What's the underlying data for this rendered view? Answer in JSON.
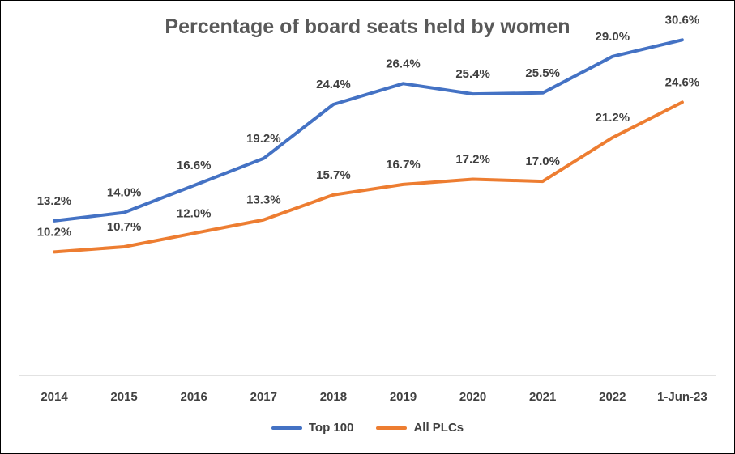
{
  "chart_data": {
    "type": "line",
    "title": "Percentage of board seats held by women",
    "categories": [
      "2014",
      "2015",
      "2016",
      "2017",
      "2018",
      "2019",
      "2020",
      "2021",
      "2022",
      "1-Jun-23"
    ],
    "ylim": [
      0,
      30
    ],
    "grid": false,
    "legend_position": "bottom",
    "series": [
      {
        "name": "Top 100",
        "color": "#4472C4",
        "values": [
          13.2,
          14.0,
          16.6,
          19.2,
          24.4,
          26.4,
          25.4,
          25.5,
          29.0,
          30.6
        ],
        "labels": [
          "13.2%",
          "14.0%",
          "16.6%",
          "19.2%",
          "24.4%",
          "26.4%",
          "25.4%",
          "25.5%",
          "29.0%",
          "30.6%"
        ]
      },
      {
        "name": "All PLCs",
        "color": "#ED7D31",
        "values": [
          10.2,
          10.7,
          12.0,
          13.3,
          15.7,
          16.7,
          17.2,
          17.0,
          21.2,
          24.6
        ],
        "labels": [
          "10.2%",
          "10.7%",
          "12.0%",
          "13.3%",
          "15.7%",
          "16.7%",
          "17.2%",
          "17.0%",
          "21.2%",
          "24.6%"
        ]
      }
    ]
  }
}
